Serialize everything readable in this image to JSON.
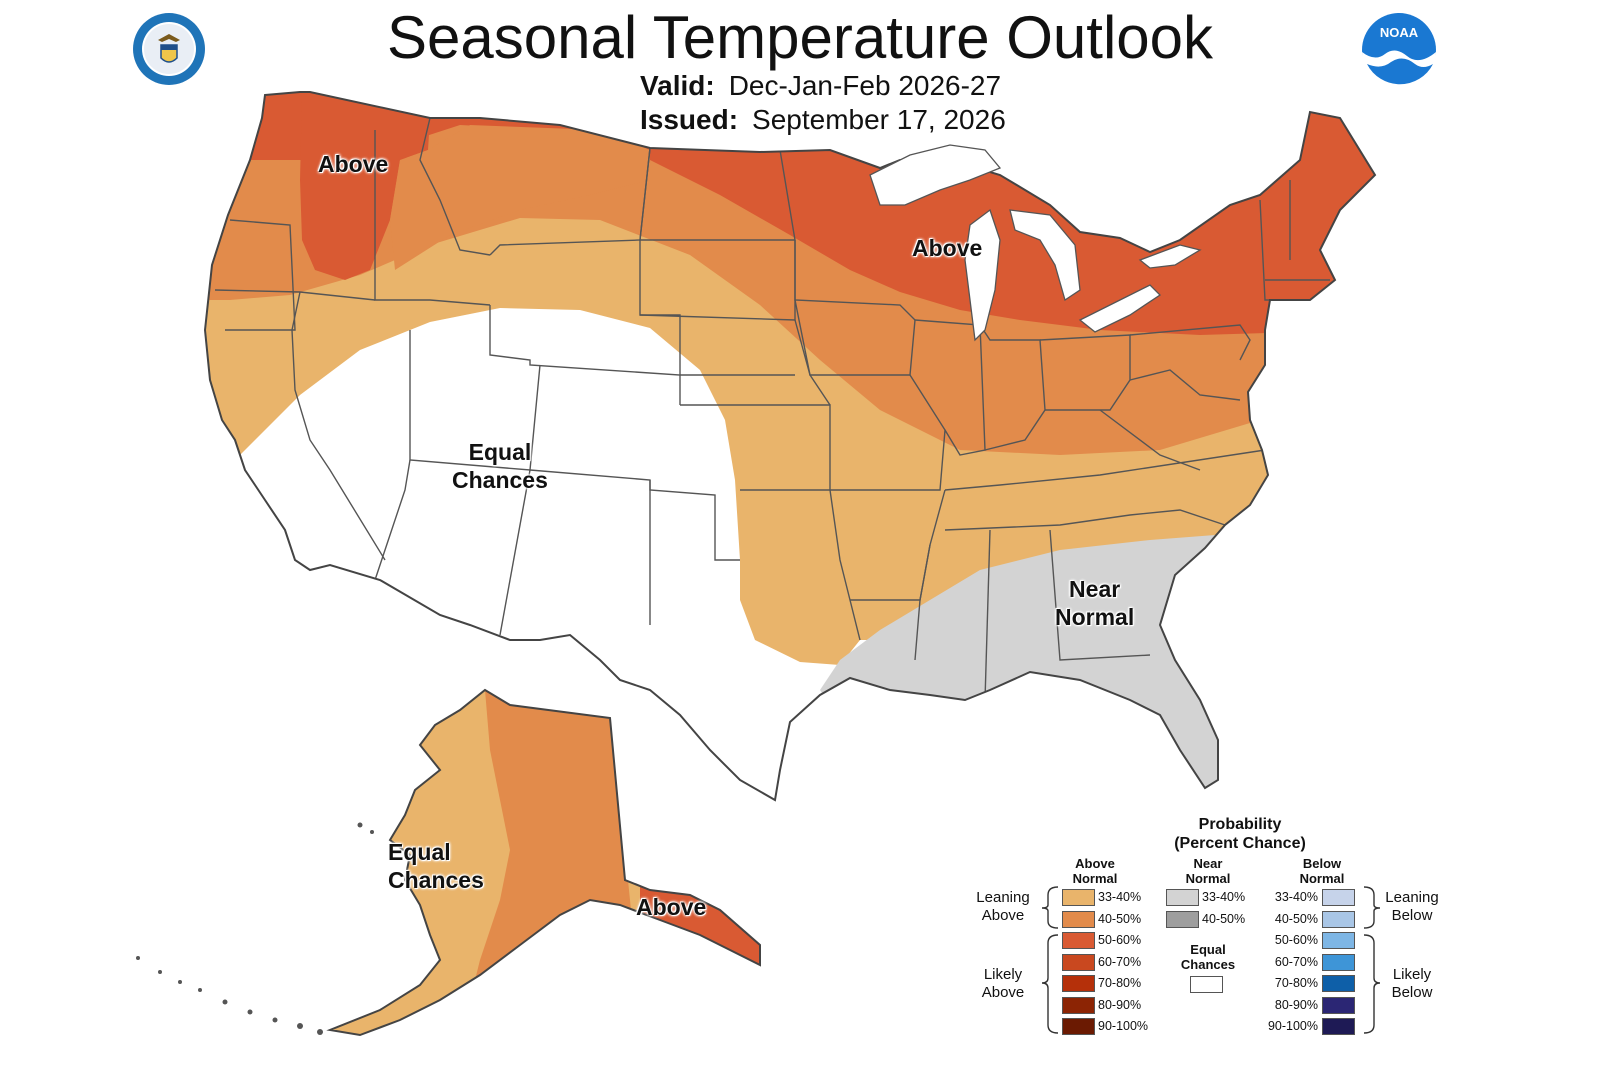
{
  "header": {
    "title": "Seasonal Temperature Outlook",
    "valid_label": "Valid:",
    "valid_value": "Dec-Jan-Feb 2026-27",
    "issued_label": "Issued:",
    "issued_value": "September 17, 2026"
  },
  "logos": {
    "left": "department-of-commerce-seal",
    "right": "noaa-logo",
    "right_text": "NOAA"
  },
  "colors": {
    "above_33_40": "#E9B46B",
    "above_40_50": "#E28B4B",
    "above_50_60": "#D95A33",
    "above_60_70": "#C9481F",
    "above_70_80": "#B5300A",
    "above_80_90": "#8C2404",
    "above_90_100": "#6B1A02",
    "near_33_40": "#D3D3D3",
    "near_40_50": "#9E9E9E",
    "below_33_40": "#C6D3EA",
    "below_40_50": "#A9C6E6",
    "below_50_60": "#7EB6E5",
    "below_60_70": "#3E95D7",
    "below_70_80": "#0E5FA8",
    "below_80_90": "#2B2674",
    "below_90_100": "#1E1A55"
  },
  "map": {
    "labels": {
      "nw_above": "Above",
      "ne_above": "Above",
      "sw_equal": "Equal\nChances",
      "se_near": "Near\nNormal",
      "ak_equal": "Equal\nChances",
      "ak_above": "Above"
    }
  },
  "legend": {
    "title": "Probability\n(Percent Chance)",
    "above_head": "Above\nNormal",
    "near_head": "Near\nNormal",
    "below_head": "Below\nNormal",
    "ec_head": "Equal\nChances",
    "leaning_above": "Leaning\nAbove",
    "likely_above": "Likely\nAbove",
    "leaning_below": "Leaning\nBelow",
    "likely_below": "Likely\nBelow",
    "above_items": [
      "33-40%",
      "40-50%",
      "50-60%",
      "60-70%",
      "70-80%",
      "80-90%",
      "90-100%"
    ],
    "near_items": [
      "33-40%",
      "40-50%"
    ],
    "below_items": [
      "33-40%",
      "40-50%",
      "50-60%",
      "60-70%",
      "70-80%",
      "80-90%",
      "90-100%"
    ]
  }
}
